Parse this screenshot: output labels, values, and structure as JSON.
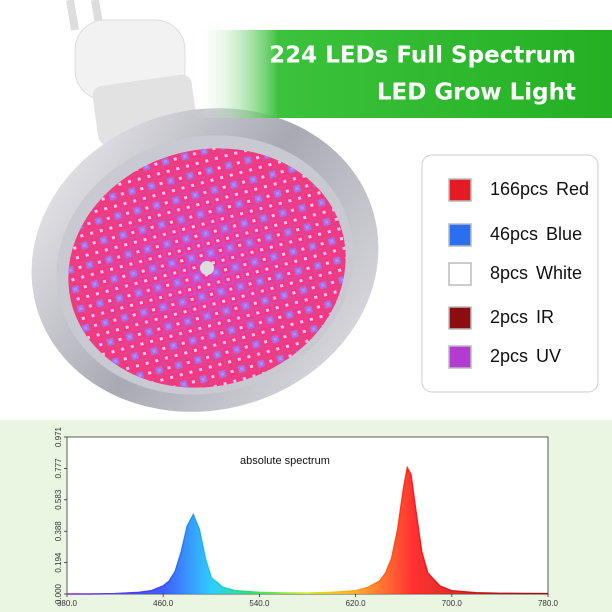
{
  "banner": {
    "line1": "224 LEDs Full Spectrum",
    "line2": "LED Grow Light"
  },
  "legend": [
    {
      "count": "166pcs",
      "name": "Red",
      "color": "#e41b23"
    },
    {
      "count": "46pcs",
      "name": "Blue",
      "color": "#2a6ff0"
    },
    {
      "count": "8pcs",
      "name": "White",
      "color": "#ffffff"
    },
    {
      "count": "2pcs",
      "name": "IR",
      "color": "#8b0d12"
    },
    {
      "count": "2pcs",
      "name": "UV",
      "color": "#b33bd1"
    }
  ],
  "chart_data": {
    "type": "line",
    "title": "absolute spectrum",
    "x": [
      380,
      400,
      420,
      440,
      450,
      460,
      465,
      470,
      475,
      480,
      485,
      490,
      495,
      500,
      510,
      520,
      540,
      560,
      580,
      600,
      620,
      630,
      640,
      645,
      650,
      655,
      660,
      663,
      666,
      670,
      675,
      680,
      690,
      700,
      720,
      740,
      760,
      780
    ],
    "series": [
      {
        "color": "spectrum",
        "values": [
          0,
          0,
          0.002,
          0.01,
          0.02,
          0.05,
          0.08,
          0.14,
          0.26,
          0.42,
          0.49,
          0.4,
          0.22,
          0.1,
          0.04,
          0.02,
          0.01,
          0.006,
          0.006,
          0.01,
          0.02,
          0.04,
          0.08,
          0.13,
          0.22,
          0.4,
          0.66,
          0.78,
          0.74,
          0.52,
          0.26,
          0.13,
          0.05,
          0.02,
          0.008,
          0.004,
          0.003,
          0.002
        ]
      }
    ],
    "xlim": [
      380,
      780
    ],
    "xticks": [
      {
        "value": 380,
        "label": "380.0"
      },
      {
        "value": 460,
        "label": "460.0"
      },
      {
        "value": 540,
        "label": "540.0"
      },
      {
        "value": 620,
        "label": "620.0"
      },
      {
        "value": 700,
        "label": "700.0"
      },
      {
        "value": 780,
        "label": "780.0"
      }
    ],
    "ylim": [
      0,
      0.971
    ],
    "yticks": [
      {
        "value": 0,
        "label": "0.000"
      },
      {
        "value": 0.194,
        "label": "0.194"
      },
      {
        "value": 0.388,
        "label": "0.388"
      },
      {
        "value": 0.583,
        "label": "0.583"
      },
      {
        "value": 0.777,
        "label": "0.777"
      },
      {
        "value": 0.971,
        "label": "0.971"
      }
    ]
  }
}
